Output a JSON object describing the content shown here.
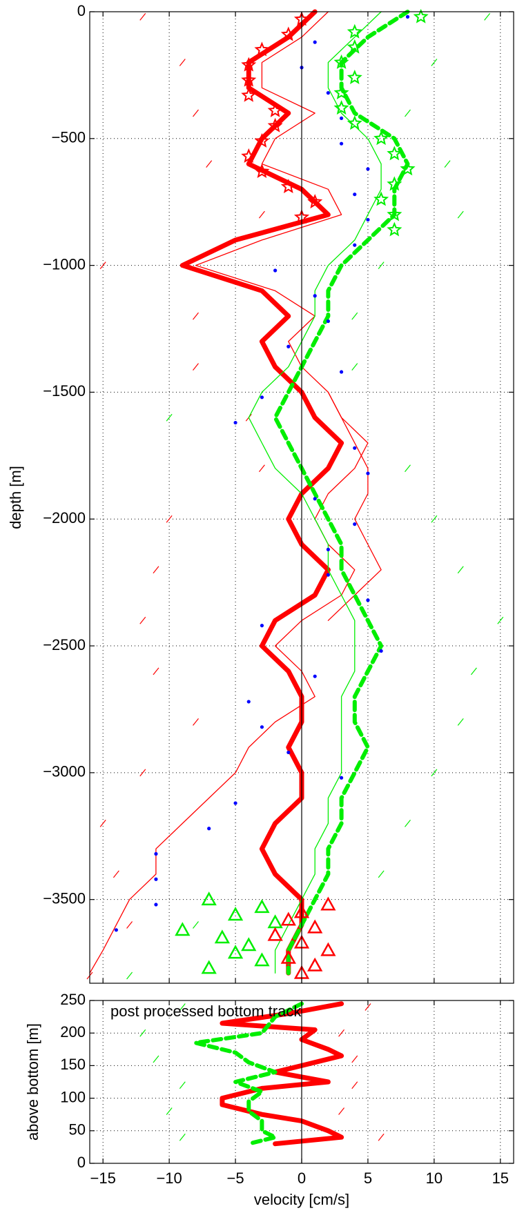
{
  "colors": {
    "red": "#ff0000",
    "green": "#00ee00",
    "blue": "#0000ff",
    "axis": "#000000",
    "grid": "#000000",
    "background": "#ffffff"
  },
  "chart_data": [
    {
      "type": "line",
      "title": "",
      "xlabel": "",
      "ylabel": "depth [m]",
      "xlim": [
        -16,
        16
      ],
      "ylim": [
        -3830,
        0
      ],
      "grid": true,
      "xticks": [
        -15,
        -10,
        -5,
        0,
        5,
        10,
        15
      ],
      "yticks": [
        0,
        -500,
        -1000,
        -1500,
        -2000,
        -2500,
        -3000,
        -3500
      ],
      "ytick_labels": [
        "0",
        "−500",
        "−1000",
        "−1500",
        "−2000",
        "−2500",
        "−3000",
        "−3500"
      ],
      "show_xtick_labels": false,
      "reference_line_x": 0,
      "series": [
        {
          "color": "red",
          "style": "thick-line",
          "depth": [
            0,
            -100,
            -200,
            -300,
            -400,
            -500,
            -600,
            -700,
            -800,
            -900,
            -1000,
            -1100,
            -1200,
            -1300,
            -1400,
            -1500,
            -1600,
            -1700,
            -1800,
            -1900,
            -2000,
            -2100,
            -2200,
            -2300,
            -2400,
            -2500,
            -2600,
            -2700,
            -2800,
            -2900,
            -3000,
            -3100,
            -3200,
            -3300,
            -3400,
            -3500,
            -3600,
            -3700,
            -3790
          ],
          "velocity": [
            1,
            -1,
            -4,
            -4,
            -1,
            -3,
            -4,
            0,
            2,
            -5,
            -9,
            -3,
            -1,
            -3,
            -2,
            0,
            1,
            3,
            2,
            0,
            -1,
            0,
            2,
            1,
            -2,
            -3,
            -1,
            0,
            0,
            -1,
            0,
            0,
            -2,
            -3,
            -2,
            0,
            0,
            -1,
            -1
          ]
        },
        {
          "color": "red",
          "style": "thin-line",
          "depth": [
            0,
            -100,
            -200,
            -300,
            -400,
            -500,
            -600,
            -700,
            -800,
            -900,
            -1000,
            -1100,
            -1200,
            -1300,
            -1400,
            -1500,
            -1600,
            -1700,
            -1800,
            -1900,
            -2000,
            -2100,
            -2200,
            -2300,
            -2400,
            -2500,
            -2600,
            -2700,
            -2800,
            -2900,
            -3000,
            -3100,
            -3200,
            -3300,
            -3400,
            -3500,
            -3600,
            -3700,
            -3790
          ],
          "velocity": [
            2,
            0,
            -3,
            -3,
            1,
            -2,
            -3,
            2,
            3,
            -3,
            -8,
            -2,
            1,
            -1,
            0,
            2,
            3,
            5,
            4,
            2,
            1,
            2,
            4,
            3,
            0,
            -2,
            0,
            1,
            -2,
            -4,
            -5,
            -7,
            -9,
            -11,
            -11,
            -13,
            -14,
            -15,
            -16
          ]
        },
        {
          "color": "red",
          "style": "thin-line",
          "depth": [
            -1500,
            -1600,
            -1700,
            -1800,
            -1900,
            -2000,
            -2100,
            -2200,
            -2300,
            -2400
          ],
          "velocity": [
            2,
            3,
            4,
            5,
            5,
            4,
            5,
            6,
            4,
            2
          ]
        },
        {
          "color": "green",
          "style": "thick-dash-line",
          "depth": [
            0,
            -100,
            -200,
            -300,
            -400,
            -500,
            -600,
            -700,
            -800,
            -900,
            -1000,
            -1100,
            -1200,
            -1300,
            -1400,
            -1500,
            -1600,
            -1700,
            -1800,
            -1900,
            -2000,
            -2100,
            -2200,
            -2300,
            -2400,
            -2500,
            -2600,
            -2700,
            -2800,
            -2900,
            -3000,
            -3100,
            -3200,
            -3300,
            -3400,
            -3500,
            -3600,
            -3700,
            -3790
          ],
          "velocity": [
            8,
            5,
            3,
            3,
            4,
            7,
            8,
            7,
            7,
            5,
            3,
            2,
            2,
            1,
            0,
            -1,
            -2,
            -1,
            0,
            1,
            2,
            3,
            3,
            4,
            5,
            6,
            5,
            4,
            4,
            5,
            4,
            3,
            3,
            2,
            2,
            1,
            0,
            -1,
            -1
          ]
        },
        {
          "color": "green",
          "style": "thin-line",
          "depth": [
            0,
            -100,
            -200,
            -300,
            -400,
            -500,
            -600,
            -700,
            -800,
            -900,
            -1000,
            -1100,
            -1200,
            -1300,
            -1400,
            -1500,
            -1600,
            -1700,
            -1800,
            -1900,
            -2000,
            -2100,
            -2200,
            -2300,
            -2400,
            -2500,
            -2600,
            -2700,
            -2800,
            -2900,
            -3000,
            -3100,
            -3200,
            -3300,
            -3400,
            -3500,
            -3600,
            -3700,
            -3790
          ],
          "velocity": [
            6,
            4,
            2,
            2,
            3,
            5,
            6,
            6,
            5,
            4,
            2,
            1,
            1,
            0,
            -1,
            -3,
            -4,
            -3,
            -2,
            0,
            1,
            2,
            2,
            3,
            4,
            4,
            4,
            3,
            3,
            3,
            3,
            2,
            2,
            1,
            1,
            0,
            -1,
            -2,
            -2
          ]
        }
      ],
      "markers": [
        {
          "color": "blue",
          "shape": "dot",
          "depth": [
            -20,
            -120,
            -220,
            -320,
            -420,
            -520,
            -620,
            -720,
            -820,
            -920,
            -1020,
            -1120,
            -1220,
            -1320,
            -1420,
            -1520,
            -1620,
            -1720,
            -1820,
            -1920,
            -2020,
            -2120,
            -2220,
            -2320,
            -2420,
            -2520,
            -2620,
            -2720,
            -2820,
            -2920,
            -3020,
            -3120,
            -3220,
            -3320,
            -3420,
            -3520,
            -3620
          ],
          "velocity": [
            8,
            1,
            0,
            2,
            3,
            3,
            5,
            4,
            5,
            4,
            -2,
            1,
            2,
            -1,
            3,
            -3,
            -5,
            4,
            5,
            1,
            4,
            2,
            2,
            5,
            -3,
            6,
            1,
            -4,
            -3,
            -1,
            3,
            -5,
            -7,
            -11,
            -11,
            -11,
            -14
          ]
        },
        {
          "color": "green",
          "shape": "star",
          "depth": [
            -20,
            -80,
            -140,
            -200,
            -260,
            -320,
            -380,
            -440,
            -500,
            -560,
            -620,
            -680,
            -740,
            -800,
            -860
          ],
          "velocity": [
            9,
            4,
            4,
            3,
            4,
            3,
            3,
            4,
            6,
            7,
            8,
            7,
            6,
            7,
            7
          ]
        },
        {
          "color": "red",
          "shape": "star",
          "depth": [
            -30,
            -90,
            -150,
            -210,
            -270,
            -330,
            -390,
            -450,
            -510,
            -570,
            -630,
            -690,
            -750,
            -810
          ],
          "velocity": [
            0,
            -1,
            -3,
            -4,
            -4,
            -4,
            -2,
            -2,
            -3,
            -4,
            -3,
            -1,
            1,
            0
          ]
        },
        {
          "color": "green",
          "shape": "triangle",
          "depth": [
            -3500,
            -3530,
            -3560,
            -3590,
            -3620,
            -3650,
            -3680,
            -3710,
            -3740,
            -3770
          ],
          "velocity": [
            -7,
            -3,
            -5,
            -2,
            -9,
            -6,
            -4,
            -5,
            -3,
            -7
          ]
        },
        {
          "color": "red",
          "shape": "triangle",
          "depth": [
            -3520,
            -3550,
            -3580,
            -3610,
            -3640,
            -3670,
            -3700,
            -3730,
            -3760,
            -3790
          ],
          "velocity": [
            2,
            0,
            -1,
            1,
            -2,
            0,
            2,
            -1,
            1,
            0
          ]
        }
      ],
      "scatter_noise": [
        {
          "color": "red",
          "depth": [
            -20,
            -200,
            -400,
            -600,
            -800,
            -1000,
            -1200,
            -1400,
            -1600,
            -1800,
            -2000,
            -2200,
            -2400,
            -2600,
            -2800,
            -3000,
            -3200,
            -3400,
            -3600,
            -3800
          ],
          "velocity": [
            -12,
            -9,
            -8,
            -7,
            -3,
            -15,
            -8,
            -8,
            -4,
            -3,
            -10,
            -11,
            -12,
            -11,
            -8,
            -12,
            -15,
            -14,
            -13,
            -16
          ]
        },
        {
          "color": "green",
          "depth": [
            -20,
            -200,
            -400,
            -600,
            -800,
            -1000,
            -1200,
            -1400,
            -1600,
            -1800,
            -2000,
            -2200,
            -2400,
            -2600,
            -2800,
            -3000,
            -3200,
            -3400,
            -3600,
            -3800
          ],
          "velocity": [
            14,
            10,
            8,
            11,
            12,
            6,
            4,
            4,
            -10,
            8,
            10,
            12,
            15,
            13,
            12,
            10,
            8,
            6,
            -8,
            -13
          ]
        }
      ]
    },
    {
      "type": "line",
      "title": "",
      "annotation": "post processed bottom track",
      "xlabel": "velocity [cm/s]",
      "ylabel": "above bottom [m]",
      "xlim": [
        -16,
        16
      ],
      "ylim": [
        0,
        250
      ],
      "grid": true,
      "xticks": [
        -15,
        -10,
        -5,
        0,
        5,
        10,
        15
      ],
      "xtick_labels": [
        "−15",
        "−10",
        "−5",
        "0",
        "5",
        "10",
        "15"
      ],
      "yticks": [
        0,
        50,
        100,
        150,
        200,
        250
      ],
      "ytick_labels": [
        "0",
        "50",
        "100",
        "150",
        "200",
        "250"
      ],
      "reference_line_x": 0,
      "series": [
        {
          "color": "red",
          "style": "thick-line",
          "height": [
            245,
            230,
            215,
            205,
            190,
            175,
            165,
            150,
            140,
            125,
            115,
            100,
            90,
            75,
            65,
            50,
            40,
            30
          ],
          "velocity": [
            3,
            -1,
            -6,
            1,
            0,
            2,
            3,
            0,
            -2,
            2,
            -3,
            -6,
            -6,
            -3,
            0,
            2,
            3,
            -2
          ]
        },
        {
          "color": "green",
          "style": "thick-dash-line",
          "height": [
            245,
            225,
            200,
            185,
            170,
            155,
            140,
            125,
            110,
            95,
            80,
            65,
            50,
            40,
            30
          ],
          "velocity": [
            0,
            -2,
            -3,
            -8,
            -5,
            -4,
            -2,
            -5,
            -3,
            -4,
            -4,
            -3,
            -3,
            -2,
            -4
          ]
        }
      ],
      "scatter_noise": [
        {
          "color": "red",
          "height": [
            240,
            200,
            160,
            120,
            80,
            40
          ],
          "velocity": [
            5,
            3,
            4,
            4,
            3,
            6
          ]
        },
        {
          "color": "green",
          "height": [
            240,
            200,
            160,
            120,
            80,
            40
          ],
          "velocity": [
            -9,
            -12,
            -11,
            -9,
            -10,
            -9
          ]
        }
      ]
    }
  ]
}
